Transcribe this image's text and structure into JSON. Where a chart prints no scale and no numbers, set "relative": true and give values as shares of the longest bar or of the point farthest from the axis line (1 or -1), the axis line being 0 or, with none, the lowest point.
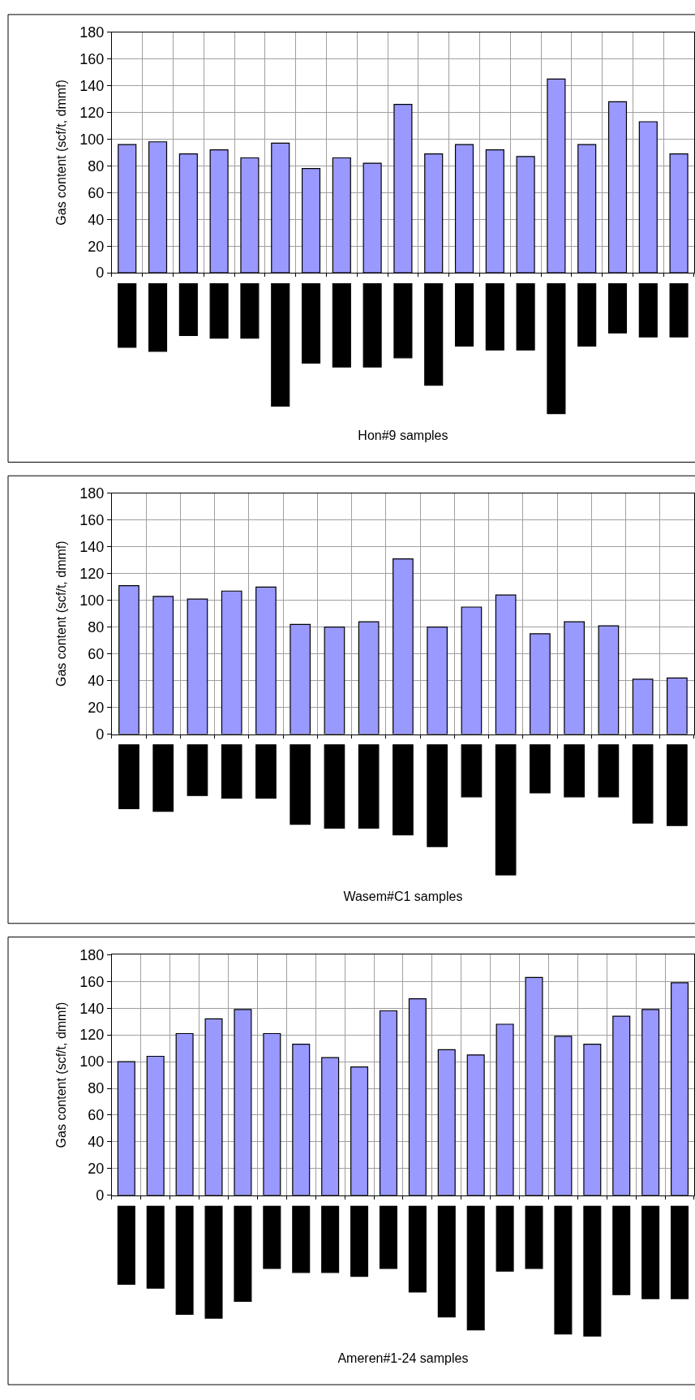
{
  "chart_data": [
    {
      "type": "bar",
      "ylabel": "Gas content (scf/t, dmmf)",
      "categories": [
        null,
        null,
        null,
        null,
        null,
        null,
        null,
        null,
        null,
        null,
        null,
        null,
        null,
        null,
        null,
        null,
        null,
        null,
        null
      ],
      "color": "#9999ff",
      "values": [
        96,
        98,
        89,
        92,
        86,
        97,
        78,
        86,
        82,
        126,
        89,
        96,
        92,
        87,
        145,
        96,
        128,
        113,
        89
      ],
      "ylim": [
        0,
        180
      ],
      "yticks": [
        0,
        20,
        40,
        60,
        80,
        100,
        120,
        140,
        160,
        180
      ],
      "grid": true,
      "tick_labels": "y"
    },
    {
      "type": "bar",
      "xlabel": "Hon#9 samples",
      "relative": true,
      "categories": [
        null,
        null,
        null,
        null,
        null,
        null,
        null,
        null,
        null,
        null,
        null,
        null,
        null,
        null,
        null,
        null,
        null,
        null,
        null
      ],
      "color": "#000000",
      "values": [
        -0.49,
        -0.52,
        -0.4,
        -0.42,
        -0.42,
        -0.94,
        -0.61,
        -0.64,
        -0.64,
        -0.57,
        -0.78,
        -0.48,
        -0.51,
        -0.51,
        -1,
        -0.48,
        -0.38,
        -0.41,
        -0.41
      ],
      "tick_labels": false
    },
    {
      "type": "bar",
      "ylabel": "Gas content (scf/t, dmmf)",
      "categories": [
        null,
        null,
        null,
        null,
        null,
        null,
        null,
        null,
        null,
        null,
        null,
        null,
        null,
        null,
        null,
        null,
        null
      ],
      "color": "#9999ff",
      "values": [
        111,
        103,
        101,
        107,
        110,
        82,
        80,
        84,
        131,
        80,
        95,
        104,
        75,
        84,
        81,
        41,
        42
      ],
      "ylim": [
        0,
        180
      ],
      "yticks": [
        0,
        20,
        40,
        60,
        80,
        100,
        120,
        140,
        160,
        180
      ],
      "grid": true,
      "tick_labels": "y"
    },
    {
      "type": "bar",
      "xlabel": "Wasem#C1 samples",
      "relative": true,
      "categories": [
        null,
        null,
        null,
        null,
        null,
        null,
        null,
        null,
        null,
        null,
        null,
        null,
        null,
        null,
        null,
        null,
        null
      ],
      "color": "#000000",
      "values": [
        -0.49,
        -0.51,
        -0.39,
        -0.41,
        -0.41,
        -0.61,
        -0.64,
        -0.64,
        -0.69,
        -0.78,
        -0.4,
        -1,
        -0.37,
        -0.4,
        -0.4,
        -0.6,
        -0.62
      ],
      "tick_labels": false
    },
    {
      "type": "bar",
      "ylabel": "Gas content (scf/t, dmmf)",
      "categories": [
        null,
        null,
        null,
        null,
        null,
        null,
        null,
        null,
        null,
        null,
        null,
        null,
        null,
        null,
        null,
        null,
        null,
        null,
        null,
        null
      ],
      "color": "#9999ff",
      "values": [
        100,
        104,
        121,
        132,
        139,
        121,
        113,
        103,
        96,
        138,
        147,
        109,
        105,
        128,
        163,
        119,
        113,
        134,
        139,
        159
      ],
      "ylim": [
        0,
        180
      ],
      "yticks": [
        0,
        20,
        40,
        60,
        80,
        100,
        120,
        140,
        160,
        180
      ],
      "grid": true,
      "tick_labels": "y"
    },
    {
      "type": "bar",
      "xlabel": "Ameren#1-24 samples",
      "relative": true,
      "categories": [
        null,
        null,
        null,
        null,
        null,
        null,
        null,
        null,
        null,
        null,
        null,
        null,
        null,
        null,
        null,
        null,
        null,
        null,
        null,
        null
      ],
      "color": "#000000",
      "values": [
        -0.6,
        -0.63,
        -0.83,
        -0.86,
        -0.73,
        -0.48,
        -0.51,
        -0.51,
        -0.54,
        -0.48,
        -0.66,
        -0.85,
        -0.95,
        -0.5,
        -0.48,
        -0.98,
        -1,
        -0.68,
        -0.71,
        -0.71
      ],
      "tick_labels": false
    }
  ]
}
